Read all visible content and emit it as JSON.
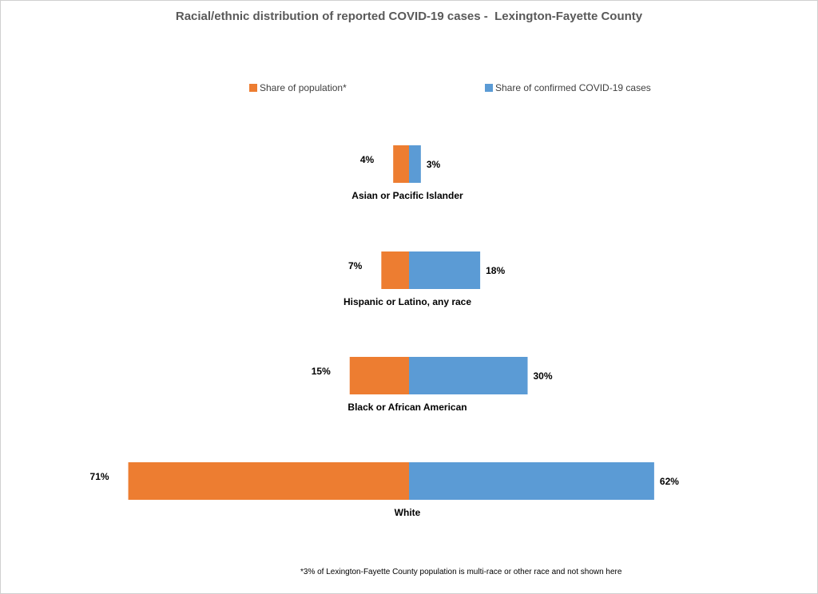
{
  "chart_data": {
    "type": "bar",
    "orientation": "horizontal-diverging",
    "title": "Racial/ethnic distribution of reported COVID-19 cases -  Lexington-Fayette County",
    "categories": [
      "Asian or Pacific Islander",
      "Hispanic or Latino, any race",
      "Black or African American",
      "White"
    ],
    "series": [
      {
        "name": "Share of population*",
        "values": [
          4,
          7,
          15,
          71
        ],
        "labels": [
          "4%",
          "7%",
          "15%",
          "71%"
        ],
        "color": "#ed7d31",
        "direction": "left"
      },
      {
        "name": "Share of confirmed COVID-19 cases",
        "values": [
          3,
          18,
          30,
          62
        ],
        "labels": [
          "3%",
          "18%",
          "30%",
          "62%"
        ],
        "color": "#5b9bd5",
        "direction": "right"
      }
    ],
    "unit": "%",
    "legend_position": "top",
    "grid": false,
    "footnote": "*3% of Lexington-Fayette County population is multi-race or other race and not shown here"
  }
}
